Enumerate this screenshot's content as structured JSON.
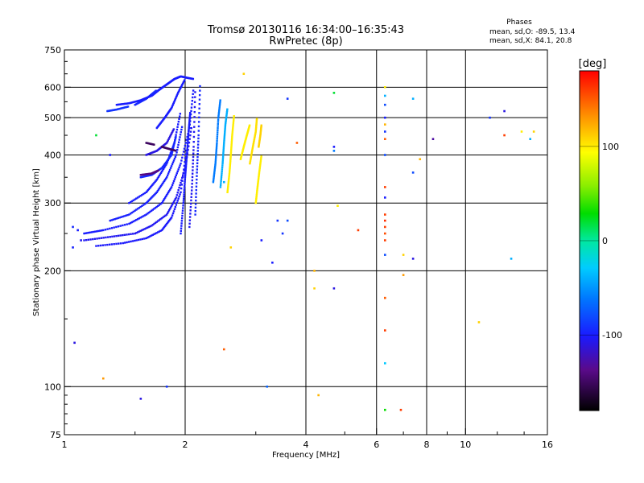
{
  "chart_data": {
    "type": "scatter",
    "title": "Tromsø 20130116 16:34:00–16:35:43",
    "subtitle": "RwPretec (8p)",
    "xlabel": "Frequency [MHz]",
    "ylabel": "Stationary phase Virtual Height [km]",
    "x_scale": "log",
    "y_scale": "log",
    "xlim": [
      1,
      16
    ],
    "ylim": [
      75,
      750
    ],
    "x_ticks": [
      1,
      2,
      4,
      6,
      8,
      10,
      16
    ],
    "y_ticks": [
      75,
      100,
      200,
      300,
      400,
      500,
      600,
      750
    ],
    "x_gridlines": [
      2,
      4,
      6,
      8,
      10
    ],
    "y_gridlines": [
      100,
      200,
      300,
      400,
      500,
      600
    ],
    "stats": {
      "heading": "Phases",
      "line_o": "mean, sd,O: -89.5, 13.4",
      "line_x": "mean, sd,X:  84.1, 20.8"
    },
    "colorbar": {
      "label": "[deg]",
      "range": [
        -180,
        180
      ],
      "ticks": [
        100,
        0,
        -100
      ]
    },
    "points": [
      {
        "x": 1.05,
        "y": 260,
        "phase": -95
      },
      {
        "x": 1.08,
        "y": 255,
        "phase": -100
      },
      {
        "x": 1.1,
        "y": 240,
        "phase": -105
      },
      {
        "x": 1.05,
        "y": 230,
        "phase": -98
      },
      {
        "x": 1.06,
        "y": 130,
        "phase": -110
      },
      {
        "x": 1.2,
        "y": 450,
        "phase": 20
      },
      {
        "x": 1.25,
        "y": 105,
        "phase": 130
      },
      {
        "x": 1.3,
        "y": 400,
        "phase": -100
      },
      {
        "x": 1.55,
        "y": 93,
        "phase": -110
      },
      {
        "x": 1.8,
        "y": 100,
        "phase": -90
      },
      {
        "x": 2.5,
        "y": 125,
        "phase": 150
      },
      {
        "x": 2.5,
        "y": 340,
        "phase": -40
      },
      {
        "x": 2.6,
        "y": 230,
        "phase": 110
      },
      {
        "x": 2.8,
        "y": 650,
        "phase": 110
      },
      {
        "x": 3.1,
        "y": 240,
        "phase": -100
      },
      {
        "x": 3.2,
        "y": 100,
        "phase": -70
      },
      {
        "x": 3.3,
        "y": 210,
        "phase": -100
      },
      {
        "x": 3.4,
        "y": 270,
        "phase": -90
      },
      {
        "x": 3.5,
        "y": 250,
        "phase": -90
      },
      {
        "x": 3.6,
        "y": 270,
        "phase": -80
      },
      {
        "x": 3.6,
        "y": 560,
        "phase": -90
      },
      {
        "x": 3.8,
        "y": 430,
        "phase": 150
      },
      {
        "x": 4.2,
        "y": 200,
        "phase": 120
      },
      {
        "x": 4.2,
        "y": 180,
        "phase": 110
      },
      {
        "x": 4.3,
        "y": 95,
        "phase": 120
      },
      {
        "x": 4.7,
        "y": 580,
        "phase": 20
      },
      {
        "x": 4.7,
        "y": 420,
        "phase": -100
      },
      {
        "x": 4.7,
        "y": 410,
        "phase": -60
      },
      {
        "x": 4.7,
        "y": 180,
        "phase": -110
      },
      {
        "x": 4.8,
        "y": 295,
        "phase": 100
      },
      {
        "x": 5.4,
        "y": 255,
        "phase": 160
      },
      {
        "x": 6.3,
        "y": 600,
        "phase": 100
      },
      {
        "x": 6.3,
        "y": 570,
        "phase": -40
      },
      {
        "x": 6.3,
        "y": 540,
        "phase": -80
      },
      {
        "x": 6.3,
        "y": 500,
        "phase": -100
      },
      {
        "x": 6.3,
        "y": 480,
        "phase": 120
      },
      {
        "x": 6.3,
        "y": 460,
        "phase": -90
      },
      {
        "x": 6.3,
        "y": 440,
        "phase": 150
      },
      {
        "x": 6.3,
        "y": 400,
        "phase": -80
      },
      {
        "x": 6.3,
        "y": 330,
        "phase": 160
      },
      {
        "x": 6.3,
        "y": 310,
        "phase": -100
      },
      {
        "x": 6.3,
        "y": 280,
        "phase": 160
      },
      {
        "x": 6.3,
        "y": 270,
        "phase": 165
      },
      {
        "x": 6.3,
        "y": 260,
        "phase": 160
      },
      {
        "x": 6.3,
        "y": 250,
        "phase": 155
      },
      {
        "x": 6.3,
        "y": 240,
        "phase": 160
      },
      {
        "x": 6.3,
        "y": 220,
        "phase": -80
      },
      {
        "x": 6.3,
        "y": 170,
        "phase": 150
      },
      {
        "x": 6.3,
        "y": 140,
        "phase": 160
      },
      {
        "x": 6.3,
        "y": 115,
        "phase": -30
      },
      {
        "x": 6.3,
        "y": 87,
        "phase": 30
      },
      {
        "x": 6.9,
        "y": 87,
        "phase": 160
      },
      {
        "x": 7.0,
        "y": 220,
        "phase": 110
      },
      {
        "x": 7.0,
        "y": 195,
        "phase": 130
      },
      {
        "x": 7.4,
        "y": 560,
        "phase": -40
      },
      {
        "x": 7.4,
        "y": 360,
        "phase": -80
      },
      {
        "x": 7.4,
        "y": 215,
        "phase": -110
      },
      {
        "x": 7.7,
        "y": 390,
        "phase": 120
      },
      {
        "x": 8.3,
        "y": 440,
        "phase": -130
      },
      {
        "x": 10.8,
        "y": 147,
        "phase": 110
      },
      {
        "x": 11.5,
        "y": 500,
        "phase": -90
      },
      {
        "x": 12.5,
        "y": 520,
        "phase": -110
      },
      {
        "x": 12.5,
        "y": 450,
        "phase": 160
      },
      {
        "x": 13.0,
        "y": 215,
        "phase": -40
      },
      {
        "x": 13.8,
        "y": 460,
        "phase": 100
      },
      {
        "x": 14.5,
        "y": 440,
        "phase": -40
      },
      {
        "x": 14.8,
        "y": 460,
        "phase": 110
      }
    ],
    "traces": [
      {
        "x": [
          1.12,
          1.25,
          1.45,
          1.6,
          1.75,
          1.85,
          1.95,
          2.05,
          2.1
        ],
        "y": [
          250,
          255,
          265,
          280,
          300,
          330,
          380,
          470,
          600
        ],
        "phase": -100
      },
      {
        "x": [
          1.12,
          1.3,
          1.5,
          1.65,
          1.8,
          1.9,
          2.0,
          2.08
        ],
        "y": [
          240,
          245,
          250,
          262,
          280,
          310,
          370,
          480
        ],
        "phase": -105
      },
      {
        "x": [
          1.2,
          1.4,
          1.6,
          1.75,
          1.85,
          1.95,
          2.02
        ],
        "y": [
          232,
          236,
          243,
          255,
          275,
          320,
          420
        ],
        "phase": -102
      },
      {
        "x": [
          1.3,
          1.45,
          1.6,
          1.7,
          1.8,
          1.9,
          1.97
        ],
        "y": [
          270,
          280,
          300,
          320,
          350,
          400,
          480
        ],
        "phase": -98
      },
      {
        "x": [
          1.45,
          1.6,
          1.7,
          1.8,
          1.88,
          1.95
        ],
        "y": [
          300,
          320,
          345,
          380,
          430,
          520
        ],
        "phase": -100
      },
      {
        "x": [
          1.55,
          1.65,
          1.75,
          1.85,
          1.9
        ],
        "y": [
          350,
          355,
          370,
          400,
          450
        ],
        "phase": -95
      },
      {
        "x": [
          1.6,
          1.7,
          1.8,
          1.88
        ],
        "y": [
          400,
          410,
          430,
          470
        ],
        "phase": -110
      },
      {
        "x": [
          1.7,
          1.78,
          1.85,
          1.92,
          2.0
        ],
        "y": [
          470,
          500,
          530,
          580,
          630
        ],
        "phase": -100
      },
      {
        "x": [
          1.65,
          1.72,
          1.8,
          1.88,
          1.95,
          2.02,
          2.1
        ],
        "y": [
          570,
          590,
          610,
          630,
          640,
          635,
          630
        ],
        "phase": -100
      },
      {
        "x": [
          1.5,
          1.6,
          1.7
        ],
        "y": [
          540,
          560,
          590
        ],
        "phase": -95
      },
      {
        "x": [
          1.35,
          1.45,
          1.55,
          1.65
        ],
        "y": [
          540,
          545,
          555,
          570
        ],
        "phase": -100
      },
      {
        "x": [
          1.28,
          1.35,
          1.45
        ],
        "y": [
          520,
          525,
          535
        ],
        "phase": -90
      },
      {
        "x": [
          1.6,
          1.68
        ],
        "y": [
          430,
          425
        ],
        "phase": -150
      },
      {
        "x": [
          1.75,
          1.82,
          1.9
        ],
        "y": [
          420,
          415,
          410
        ],
        "phase": -150
      },
      {
        "x": [
          1.55,
          1.65,
          1.72
        ],
        "y": [
          355,
          358,
          365
        ],
        "phase": -140
      },
      {
        "x": [
          1.95,
          1.98,
          2.0,
          2.02,
          2.04,
          2.06
        ],
        "y": [
          250,
          300,
          350,
          400,
          460,
          520
        ],
        "phase": -100
      },
      {
        "x": [
          2.05,
          2.08,
          2.1,
          2.12
        ],
        "y": [
          260,
          330,
          420,
          600
        ],
        "phase": -105
      },
      {
        "x": [
          2.12,
          2.14,
          2.16,
          2.18
        ],
        "y": [
          280,
          360,
          450,
          620
        ],
        "phase": -95
      },
      {
        "x": [
          2.35,
          2.38,
          2.4,
          2.42,
          2.45
        ],
        "y": [
          340,
          380,
          430,
          500,
          560
        ],
        "phase": -60
      },
      {
        "x": [
          2.45,
          2.48,
          2.5,
          2.52,
          2.55
        ],
        "y": [
          330,
          380,
          430,
          480,
          530
        ],
        "phase": -40
      },
      {
        "x": [
          2.55,
          2.58,
          2.6,
          2.62,
          2.65
        ],
        "y": [
          320,
          360,
          400,
          450,
          510
        ],
        "phase": 100
      },
      {
        "x": [
          2.75,
          2.8,
          2.85,
          2.9
        ],
        "y": [
          390,
          420,
          450,
          480
        ],
        "phase": 100
      },
      {
        "x": [
          2.9,
          2.95,
          3.0,
          3.02
        ],
        "y": [
          380,
          420,
          460,
          500
        ],
        "phase": 105
      },
      {
        "x": [
          3.0,
          3.03,
          3.06,
          3.1
        ],
        "y": [
          300,
          330,
          360,
          400
        ],
        "phase": 100
      },
      {
        "x": [
          3.05,
          3.08,
          3.1
        ],
        "y": [
          420,
          450,
          480
        ],
        "phase": 110
      }
    ]
  }
}
